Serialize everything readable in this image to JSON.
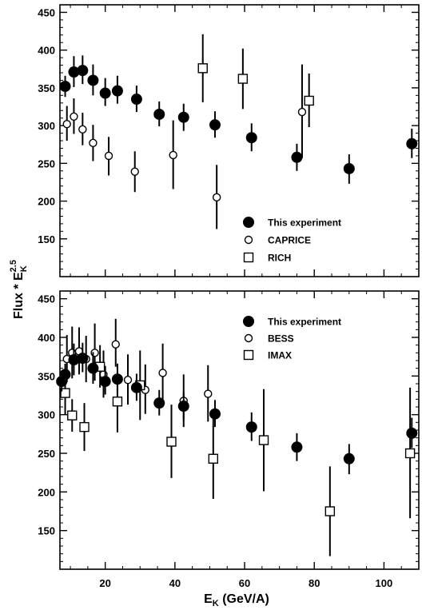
{
  "chart_data": [
    {
      "type": "scatter",
      "panel": "top",
      "xlim": [
        7,
        110
      ],
      "ylim": [
        100,
        460
      ],
      "yticks": [
        150,
        200,
        250,
        300,
        350,
        400,
        450
      ],
      "legend_position": "bottom-center",
      "series": [
        {
          "name": "This experiment",
          "marker": "filled-circle",
          "points": [
            {
              "x": 8.5,
              "y": 352,
              "lo": 338,
              "hi": 366
            },
            {
              "x": 11,
              "y": 371,
              "lo": 351,
              "hi": 392
            },
            {
              "x": 13.5,
              "y": 373,
              "lo": 355,
              "hi": 393
            },
            {
              "x": 16.5,
              "y": 360,
              "lo": 340,
              "hi": 381
            },
            {
              "x": 20,
              "y": 343,
              "lo": 326,
              "hi": 363
            },
            {
              "x": 23.5,
              "y": 346,
              "lo": 329,
              "hi": 366
            },
            {
              "x": 29,
              "y": 335,
              "lo": 318,
              "hi": 353
            },
            {
              "x": 35.5,
              "y": 315,
              "lo": 299,
              "hi": 332
            },
            {
              "x": 42.5,
              "y": 311,
              "lo": 293,
              "hi": 329
            },
            {
              "x": 51.5,
              "y": 301,
              "lo": 284,
              "hi": 319
            },
            {
              "x": 62,
              "y": 284,
              "lo": 266,
              "hi": 303
            },
            {
              "x": 75,
              "y": 258,
              "lo": 240,
              "hi": 276
            },
            {
              "x": 90,
              "y": 243,
              "lo": 223,
              "hi": 262
            },
            {
              "x": 108,
              "y": 276,
              "lo": 257,
              "hi": 296
            }
          ]
        },
        {
          "name": "CAPRICE",
          "marker": "open-circle",
          "points": [
            {
              "x": 9,
              "y": 302,
              "lo": 280,
              "hi": 326
            },
            {
              "x": 11,
              "y": 312,
              "lo": 289,
              "hi": 336
            },
            {
              "x": 13.5,
              "y": 295,
              "lo": 274,
              "hi": 317
            },
            {
              "x": 16.5,
              "y": 277,
              "lo": 253,
              "hi": 301
            },
            {
              "x": 21,
              "y": 260,
              "lo": 234,
              "hi": 285
            },
            {
              "x": 28.5,
              "y": 239,
              "lo": 212,
              "hi": 266
            },
            {
              "x": 39.5,
              "y": 261,
              "lo": 216,
              "hi": 307
            },
            {
              "x": 52,
              "y": 205,
              "lo": 163,
              "hi": 248
            },
            {
              "x": 76.5,
              "y": 318,
              "lo": 257,
              "hi": 381
            }
          ]
        },
        {
          "name": "RICH",
          "marker": "open-square",
          "points": [
            {
              "x": 48,
              "y": 376,
              "lo": 331,
              "hi": 421
            },
            {
              "x": 59.5,
              "y": 362,
              "lo": 322,
              "hi": 402
            },
            {
              "x": 78.5,
              "y": 333,
              "lo": 298,
              "hi": 369
            }
          ]
        }
      ]
    },
    {
      "type": "scatter",
      "panel": "bottom",
      "xlim": [
        7,
        110
      ],
      "xticks": [
        20,
        40,
        60,
        80,
        100
      ],
      "ylim": [
        100,
        460
      ],
      "yticks": [
        150,
        200,
        250,
        300,
        350,
        400,
        450
      ],
      "legend_position": "top-center",
      "series": [
        {
          "name": "This experiment",
          "marker": "filled-circle",
          "points": [
            {
              "x": 7.5,
              "y": 343,
              "lo": 330,
              "hi": 357
            },
            {
              "x": 8.5,
              "y": 352,
              "lo": 338,
              "hi": 366
            },
            {
              "x": 11,
              "y": 371,
              "lo": 351,
              "hi": 392
            },
            {
              "x": 13.5,
              "y": 373,
              "lo": 355,
              "hi": 393
            },
            {
              "x": 16.5,
              "y": 360,
              "lo": 340,
              "hi": 381
            },
            {
              "x": 20,
              "y": 343,
              "lo": 326,
              "hi": 363
            },
            {
              "x": 23.5,
              "y": 346,
              "lo": 329,
              "hi": 366
            },
            {
              "x": 29,
              "y": 335,
              "lo": 318,
              "hi": 353
            },
            {
              "x": 35.5,
              "y": 315,
              "lo": 299,
              "hi": 332
            },
            {
              "x": 42.5,
              "y": 311,
              "lo": 293,
              "hi": 329
            },
            {
              "x": 51.5,
              "y": 301,
              "lo": 284,
              "hi": 319
            },
            {
              "x": 62,
              "y": 284,
              "lo": 266,
              "hi": 303
            },
            {
              "x": 75,
              "y": 258,
              "lo": 240,
              "hi": 276
            },
            {
              "x": 90,
              "y": 243,
              "lo": 223,
              "hi": 262
            },
            {
              "x": 108,
              "y": 276,
              "lo": 257,
              "hi": 296
            }
          ]
        },
        {
          "name": "BESS",
          "marker": "open-circle",
          "points": [
            {
              "x": 9,
              "y": 372,
              "lo": 342,
              "hi": 403
            },
            {
              "x": 10.5,
              "y": 380,
              "lo": 347,
              "hi": 414
            },
            {
              "x": 12.5,
              "y": 382,
              "lo": 352,
              "hi": 413
            },
            {
              "x": 14.5,
              "y": 372,
              "lo": 342,
              "hi": 402
            },
            {
              "x": 17,
              "y": 380,
              "lo": 344,
              "hi": 418
            },
            {
              "x": 19.5,
              "y": 352,
              "lo": 322,
              "hi": 383
            },
            {
              "x": 23,
              "y": 391,
              "lo": 362,
              "hi": 424
            },
            {
              "x": 26.5,
              "y": 345,
              "lo": 313,
              "hi": 378
            },
            {
              "x": 31.5,
              "y": 332,
              "lo": 301,
              "hi": 365
            },
            {
              "x": 36.5,
              "y": 354,
              "lo": 318,
              "hi": 392
            },
            {
              "x": 42.5,
              "y": 318,
              "lo": 284,
              "hi": 352
            },
            {
              "x": 49.5,
              "y": 327,
              "lo": 291,
              "hi": 364
            }
          ]
        },
        {
          "name": "IMAX",
          "marker": "open-square",
          "points": [
            {
              "x": 8.5,
              "y": 328,
              "lo": 300,
              "hi": 356
            },
            {
              "x": 10.5,
              "y": 299,
              "lo": 278,
              "hi": 320
            },
            {
              "x": 14,
              "y": 284,
              "lo": 253,
              "hi": 315
            },
            {
              "x": 18.5,
              "y": 362,
              "lo": 335,
              "hi": 390
            },
            {
              "x": 23.5,
              "y": 317,
              "lo": 277,
              "hi": 357
            },
            {
              "x": 30,
              "y": 338,
              "lo": 293,
              "hi": 383
            },
            {
              "x": 39,
              "y": 265,
              "lo": 218,
              "hi": 313
            },
            {
              "x": 51,
              "y": 243,
              "lo": 191,
              "hi": 296
            },
            {
              "x": 65.5,
              "y": 267,
              "lo": 201,
              "hi": 333
            },
            {
              "x": 84.5,
              "y": 175,
              "lo": 117,
              "hi": 233
            },
            {
              "x": 107.5,
              "y": 250,
              "lo": 166,
              "hi": 335
            }
          ]
        }
      ]
    }
  ],
  "labels": {
    "ylabel_main": "Flux * E",
    "ylabel_sub": "K",
    "ylabel_sup": "2.5",
    "xlabel_main": "E",
    "xlabel_sub": "K",
    "xlabel_rest": " (GeV/A)"
  }
}
